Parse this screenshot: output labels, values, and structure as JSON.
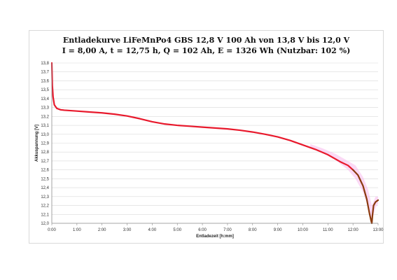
{
  "chart_data": {
    "type": "line",
    "title_line1": "Entladekurve LiFeMnPo4 GBS 12,8 V 100 Ah von 13,8 V bis 12,0 V",
    "title_line2": "I = 8,00 A, t = 12,75 h, Q = 102 Ah, E = 1326 Wh (Nutzbar: 102 %)",
    "xlabel": "Entladezeit [h:mm]",
    "ylabel": "Akkuspannung [V]",
    "x_unit": "hours",
    "xlim": [
      0,
      13
    ],
    "ylim": [
      12.0,
      13.8
    ],
    "x_tick_labels": [
      "0:00",
      "1:00",
      "2:00",
      "3:00",
      "4:00",
      "5:00",
      "6:00",
      "7:00",
      "8:00",
      "9:00",
      "10:00",
      "11:00",
      "12:00",
      "13:00"
    ],
    "y_tick_labels": [
      "12,0",
      "12,1",
      "12,2",
      "12,3",
      "12,4",
      "12,5",
      "12,6",
      "12,7",
      "12,8",
      "12,9",
      "13,0",
      "13,1",
      "13,2",
      "13,3",
      "13,4",
      "13,5",
      "13,6",
      "13,7",
      "13,8"
    ],
    "grid": true,
    "series": [
      {
        "color": "#e8192c",
        "x": [
          0,
          0.02,
          0.05,
          0.1,
          0.2,
          0.35,
          0.5,
          1,
          1.5,
          2,
          2.5,
          3,
          3.5,
          4,
          4.5,
          5,
          5.5,
          6,
          6.5,
          7,
          7.5,
          8,
          8.5,
          9,
          9.5,
          10,
          10.5,
          11,
          11.5,
          11.8,
          12.0
        ],
        "y": [
          13.8,
          13.55,
          13.42,
          13.33,
          13.29,
          13.275,
          13.27,
          13.26,
          13.25,
          13.24,
          13.225,
          13.205,
          13.175,
          13.14,
          13.115,
          13.1,
          13.09,
          13.08,
          13.07,
          13.06,
          13.045,
          13.025,
          13.0,
          12.97,
          12.93,
          12.88,
          12.83,
          12.77,
          12.69,
          12.65,
          12.6
        ]
      },
      {
        "color": "#8b3a0e",
        "x": [
          12.0,
          12.2,
          12.4,
          12.55,
          12.65,
          12.72,
          12.75,
          12.78,
          12.82,
          12.9,
          13.0
        ],
        "y": [
          12.6,
          12.54,
          12.42,
          12.27,
          12.12,
          12.03,
          12.0,
          12.1,
          12.2,
          12.24,
          12.26
        ]
      }
    ],
    "band": {
      "color": "#f7b9ec",
      "x": [
        10.3,
        10.8,
        11.3,
        11.8,
        12.1,
        12.4,
        12.6,
        12.75,
        12.9,
        13.0
      ],
      "lower": [
        12.85,
        12.79,
        12.71,
        12.6,
        12.5,
        12.35,
        12.18,
        12.02,
        12.18,
        12.22
      ],
      "upper": [
        12.89,
        12.84,
        12.78,
        12.7,
        12.65,
        12.52,
        12.38,
        12.2,
        12.3,
        12.3
      ]
    }
  }
}
